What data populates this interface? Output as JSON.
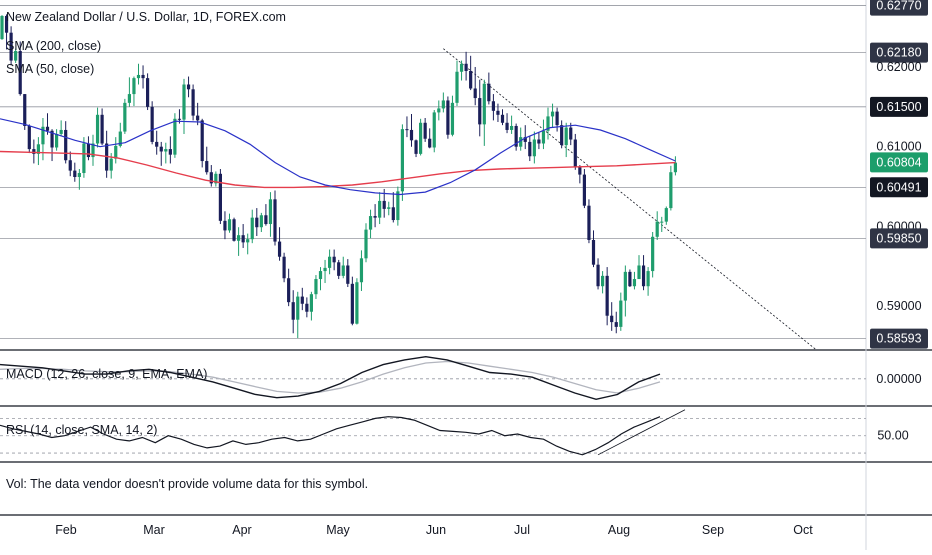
{
  "chart_data": {
    "type": "candlestick",
    "title": "New Zealand Dollar / U.S. Dollar, 1D, FOREX.com",
    "price_panel": {
      "ylim": [
        0.5845,
        0.6284
      ],
      "y_ticks": [
        0.59,
        0.6,
        0.61,
        0.62
      ],
      "indicators": [
        {
          "name": "SMA (200, close)",
          "color": "#e53d4c"
        },
        {
          "name": "SMA (50, close)",
          "color": "#2a32c8"
        }
      ],
      "horizontal_levels": [
        0.6277,
        0.6218,
        0.615,
        0.6049,
        0.5985,
        0.58593
      ],
      "axis_labels": [
        {
          "text": "0.62770",
          "value": 0.6277,
          "bg": "#2f3445",
          "fg": "#ffffff"
        },
        {
          "text": "0.62180",
          "value": 0.6218,
          "bg": "#2f3445",
          "fg": "#ffffff"
        },
        {
          "text": "0.62000",
          "value": 0.62,
          "bg": "",
          "fg": "#131722"
        },
        {
          "text": "0.61500",
          "value": 0.615,
          "bg": "#131722",
          "fg": "#ffffff"
        },
        {
          "text": "0.61000",
          "value": 0.61,
          "bg": "",
          "fg": "#131722"
        },
        {
          "text": "0.60804",
          "value": 0.60804,
          "bg": "#1d9e6b",
          "fg": "#ffffff"
        },
        {
          "text": "0.60491",
          "value": 0.60491,
          "bg": "#131722",
          "fg": "#ffffff"
        },
        {
          "text": "0.60000",
          "value": 0.6,
          "bg": "",
          "fg": "#131722"
        },
        {
          "text": "0.59850",
          "value": 0.5985,
          "bg": "#2f3445",
          "fg": "#ffffff"
        },
        {
          "text": "0.59000",
          "value": 0.59,
          "bg": "",
          "fg": "#131722"
        },
        {
          "text": "0.58593",
          "value": 0.58593,
          "bg": "#2f3445",
          "fg": "#ffffff"
        }
      ],
      "trendline": {
        "x": [
          97,
          179
        ],
        "y": [
          0.6223,
          0.5845
        ]
      },
      "ohlc": [
        [
          0.6235,
          0.6265,
          0.6234,
          0.6264
        ],
        [
          0.6264,
          0.6266,
          0.6222,
          0.6243
        ],
        [
          0.6243,
          0.6251,
          0.6202,
          0.6208
        ],
        [
          0.6208,
          0.6223,
          0.6205,
          0.622
        ],
        [
          0.622,
          0.6232,
          0.6164,
          0.6166
        ],
        [
          0.6166,
          0.6166,
          0.6121,
          0.6126
        ],
        [
          0.6126,
          0.6128,
          0.6092,
          0.6097
        ],
        [
          0.6097,
          0.6109,
          0.6079,
          0.6091
        ],
        [
          0.6091,
          0.6112,
          0.6077,
          0.6103
        ],
        [
          0.6103,
          0.6136,
          0.6083,
          0.6125
        ],
        [
          0.6125,
          0.6142,
          0.6115,
          0.612
        ],
        [
          0.612,
          0.6122,
          0.6082,
          0.6099
        ],
        [
          0.6099,
          0.6122,
          0.6095,
          0.6116
        ],
        [
          0.6116,
          0.6133,
          0.6113,
          0.6121
        ],
        [
          0.6121,
          0.6132,
          0.6079,
          0.6083
        ],
        [
          0.6083,
          0.6094,
          0.6063,
          0.607
        ],
        [
          0.607,
          0.608,
          0.6056,
          0.6062
        ],
        [
          0.6062,
          0.6072,
          0.6046,
          0.6067
        ],
        [
          0.6067,
          0.6112,
          0.6061,
          0.6104
        ],
        [
          0.6104,
          0.6113,
          0.6083,
          0.6087
        ],
        [
          0.6087,
          0.6115,
          0.6076,
          0.6104
        ],
        [
          0.6104,
          0.6149,
          0.6099,
          0.614
        ],
        [
          0.614,
          0.6148,
          0.6102,
          0.6104
        ],
        [
          0.6104,
          0.612,
          0.6061,
          0.607
        ],
        [
          0.607,
          0.6092,
          0.606,
          0.6085
        ],
        [
          0.6085,
          0.6112,
          0.6079,
          0.6101
        ],
        [
          0.6101,
          0.613,
          0.6099,
          0.6119
        ],
        [
          0.6119,
          0.616,
          0.6116,
          0.6155
        ],
        [
          0.6155,
          0.6187,
          0.615,
          0.6166
        ],
        [
          0.6166,
          0.6188,
          0.6151,
          0.6186
        ],
        [
          0.6186,
          0.6204,
          0.6178,
          0.619
        ],
        [
          0.619,
          0.6202,
          0.6173,
          0.6186
        ],
        [
          0.6186,
          0.6192,
          0.6146,
          0.615
        ],
        [
          0.615,
          0.6157,
          0.6103,
          0.6106
        ],
        [
          0.6106,
          0.612,
          0.609,
          0.61
        ],
        [
          0.61,
          0.6106,
          0.6076,
          0.6094
        ],
        [
          0.6094,
          0.6105,
          0.6079,
          0.6097
        ],
        [
          0.6097,
          0.6113,
          0.6079,
          0.609
        ],
        [
          0.609,
          0.6142,
          0.6086,
          0.6135
        ],
        [
          0.6135,
          0.6147,
          0.6129,
          0.6134
        ],
        [
          0.6134,
          0.6185,
          0.6116,
          0.6178
        ],
        [
          0.6178,
          0.6188,
          0.6162,
          0.6172
        ],
        [
          0.6172,
          0.6178,
          0.6133,
          0.6139
        ],
        [
          0.6139,
          0.6155,
          0.6127,
          0.6133
        ],
        [
          0.6133,
          0.6135,
          0.6074,
          0.6082
        ],
        [
          0.6082,
          0.61,
          0.6065,
          0.6068
        ],
        [
          0.6068,
          0.6077,
          0.605,
          0.6054
        ],
        [
          0.6054,
          0.6069,
          0.605,
          0.6066
        ],
        [
          0.6066,
          0.6072,
          0.6003,
          0.6007
        ],
        [
          0.6007,
          0.6019,
          0.5984,
          0.5995
        ],
        [
          0.5995,
          0.6016,
          0.5992,
          0.6009
        ],
        [
          0.6009,
          0.6011,
          0.5981,
          0.5982
        ],
        [
          0.5982,
          0.5999,
          0.5963,
          0.5989
        ],
        [
          0.5989,
          0.6003,
          0.5973,
          0.598
        ],
        [
          0.598,
          0.5991,
          0.5965,
          0.5984
        ],
        [
          0.5984,
          0.6021,
          0.5979,
          0.6011
        ],
        [
          0.6011,
          0.6023,
          0.5988,
          0.5999
        ],
        [
          0.5999,
          0.6017,
          0.5993,
          0.6014
        ],
        [
          0.6014,
          0.6028,
          0.6001,
          0.6003
        ],
        [
          0.6003,
          0.6043,
          0.5987,
          0.6034
        ],
        [
          0.6034,
          0.6045,
          0.5976,
          0.5981
        ],
        [
          0.5981,
          0.5999,
          0.5957,
          0.5962
        ],
        [
          0.5962,
          0.5967,
          0.593,
          0.5935
        ],
        [
          0.5935,
          0.5947,
          0.59,
          0.5905
        ],
        [
          0.5905,
          0.592,
          0.5866,
          0.5883
        ],
        [
          0.5883,
          0.5918,
          0.586,
          0.5912
        ],
        [
          0.5912,
          0.5923,
          0.5895,
          0.5903
        ],
        [
          0.5903,
          0.5911,
          0.5886,
          0.5893
        ],
        [
          0.5893,
          0.5918,
          0.5882,
          0.5915
        ],
        [
          0.5915,
          0.5939,
          0.5909,
          0.5934
        ],
        [
          0.5934,
          0.5949,
          0.592,
          0.5944
        ],
        [
          0.5944,
          0.5958,
          0.5929,
          0.5948
        ],
        [
          0.5948,
          0.5971,
          0.594,
          0.5962
        ],
        [
          0.5962,
          0.5971,
          0.5945,
          0.5955
        ],
        [
          0.5955,
          0.5958,
          0.5934,
          0.5938
        ],
        [
          0.5938,
          0.5962,
          0.5935,
          0.5951
        ],
        [
          0.5951,
          0.5959,
          0.5924,
          0.5928
        ],
        [
          0.5928,
          0.5937,
          0.5876,
          0.5878
        ],
        [
          0.5878,
          0.5935,
          0.5877,
          0.593
        ],
        [
          0.593,
          0.597,
          0.5919,
          0.596
        ],
        [
          0.596,
          0.6004,
          0.5955,
          0.5996
        ],
        [
          0.5996,
          0.6021,
          0.5985,
          0.6013
        ],
        [
          0.6013,
          0.6028,
          0.5999,
          0.6011
        ],
        [
          0.6011,
          0.6043,
          0.6003,
          0.6032
        ],
        [
          0.6032,
          0.6047,
          0.6011,
          0.6022
        ],
        [
          0.6022,
          0.6031,
          0.6014,
          0.6024
        ],
        [
          0.6024,
          0.6043,
          0.6005,
          0.6008
        ],
        [
          0.6008,
          0.605,
          0.6001,
          0.6044
        ],
        [
          0.6044,
          0.6128,
          0.6032,
          0.6122
        ],
        [
          0.6122,
          0.6138,
          0.6112,
          0.6121
        ],
        [
          0.6121,
          0.6141,
          0.61,
          0.6108
        ],
        [
          0.6108,
          0.6109,
          0.6087,
          0.6091
        ],
        [
          0.6091,
          0.6135,
          0.6089,
          0.613
        ],
        [
          0.613,
          0.6136,
          0.6106,
          0.611
        ],
        [
          0.611,
          0.6123,
          0.6098,
          0.6099
        ],
        [
          0.6099,
          0.6146,
          0.6093,
          0.6143
        ],
        [
          0.6143,
          0.6158,
          0.6133,
          0.6148
        ],
        [
          0.6148,
          0.6168,
          0.6143,
          0.6158
        ],
        [
          0.6158,
          0.6163,
          0.611,
          0.6115
        ],
        [
          0.6115,
          0.6164,
          0.6113,
          0.6155
        ],
        [
          0.6155,
          0.6208,
          0.6151,
          0.6194
        ],
        [
          0.6194,
          0.6208,
          0.6183,
          0.6204
        ],
        [
          0.6204,
          0.6219,
          0.6183,
          0.6195
        ],
        [
          0.6195,
          0.6214,
          0.6171,
          0.6173
        ],
        [
          0.6173,
          0.62,
          0.6152,
          0.6161
        ],
        [
          0.6161,
          0.6184,
          0.6113,
          0.6128
        ],
        [
          0.6128,
          0.6184,
          0.6101,
          0.6179
        ],
        [
          0.6179,
          0.6193,
          0.6153,
          0.6157
        ],
        [
          0.6157,
          0.6166,
          0.6133,
          0.6145
        ],
        [
          0.6145,
          0.6154,
          0.6131,
          0.614
        ],
        [
          0.614,
          0.6147,
          0.6127,
          0.613
        ],
        [
          0.613,
          0.6142,
          0.6117,
          0.6121
        ],
        [
          0.6121,
          0.6139,
          0.6116,
          0.6126
        ],
        [
          0.6126,
          0.6129,
          0.6095,
          0.61
        ],
        [
          0.61,
          0.6124,
          0.6095,
          0.6112
        ],
        [
          0.6112,
          0.6127,
          0.6097,
          0.6106
        ],
        [
          0.6106,
          0.6113,
          0.6082,
          0.6088
        ],
        [
          0.6088,
          0.6119,
          0.6079,
          0.6109
        ],
        [
          0.6109,
          0.6118,
          0.6097,
          0.6104
        ],
        [
          0.6104,
          0.6134,
          0.6097,
          0.612
        ],
        [
          0.612,
          0.6149,
          0.6109,
          0.6138
        ],
        [
          0.6138,
          0.6154,
          0.6124,
          0.6144
        ],
        [
          0.6144,
          0.6149,
          0.6119,
          0.6127
        ],
        [
          0.6127,
          0.6133,
          0.6098,
          0.6102
        ],
        [
          0.6102,
          0.613,
          0.6087,
          0.6124
        ],
        [
          0.6124,
          0.613,
          0.6102,
          0.6109
        ],
        [
          0.6109,
          0.6116,
          0.6071,
          0.6074
        ],
        [
          0.6074,
          0.6077,
          0.6054,
          0.6065
        ],
        [
          0.6065,
          0.6072,
          0.6023,
          0.6026
        ],
        [
          0.6026,
          0.6034,
          0.5979,
          0.5983
        ],
        [
          0.5983,
          0.5995,
          0.5949,
          0.5952
        ],
        [
          0.5952,
          0.596,
          0.5921,
          0.5925
        ],
        [
          0.5925,
          0.5944,
          0.5916,
          0.5938
        ],
        [
          0.5938,
          0.5949,
          0.5876,
          0.5888
        ],
        [
          0.5888,
          0.5905,
          0.5869,
          0.588
        ],
        [
          0.588,
          0.5893,
          0.5866,
          0.5874
        ],
        [
          0.5874,
          0.5917,
          0.5869,
          0.5907
        ],
        [
          0.5907,
          0.5951,
          0.5887,
          0.5943
        ],
        [
          0.5943,
          0.5946,
          0.5924,
          0.5925
        ],
        [
          0.5925,
          0.5943,
          0.5921,
          0.5934
        ],
        [
          0.5934,
          0.5964,
          0.5934,
          0.5951
        ],
        [
          0.5951,
          0.5964,
          0.592,
          0.5925
        ],
        [
          0.5925,
          0.5949,
          0.5913,
          0.5944
        ],
        [
          0.5944,
          0.5993,
          0.5936,
          0.5987
        ],
        [
          0.5987,
          0.6019,
          0.5983,
          0.6006
        ],
        [
          0.6006,
          0.6012,
          0.5993,
          0.6006
        ],
        [
          0.6006,
          0.6025,
          0.6002,
          0.6023
        ],
        [
          0.6023,
          0.6076,
          0.602,
          0.6068
        ],
        [
          0.6068,
          0.6088,
          0.6064,
          0.608
        ]
      ],
      "sma50": [
        0.6135,
        0.6128,
        0.6118,
        0.6108,
        0.61,
        0.6105,
        0.612,
        0.6132,
        0.6131,
        0.612,
        0.6103,
        0.608,
        0.6062,
        0.6052,
        0.6046,
        0.6042,
        0.604,
        0.6043,
        0.6055,
        0.6071,
        0.6092,
        0.6111,
        0.6124,
        0.6127,
        0.6121,
        0.611,
        0.6096,
        0.6082
      ],
      "sma200": [
        0.6094,
        0.6093,
        0.6092,
        0.6091,
        0.6086,
        0.6077,
        0.6067,
        0.6058,
        0.6052,
        0.6049,
        0.6049,
        0.605,
        0.6052,
        0.6056,
        0.6061,
        0.6066,
        0.607,
        0.6072,
        0.6073,
        0.6074,
        0.6075,
        0.6076,
        0.6078,
        0.608
      ]
    },
    "macd_panel": {
      "label": "MACD (12, 26, close, 9, EMA, EMA)",
      "axis_label": "0.00000",
      "ylim": [
        -0.0032,
        0.0034
      ],
      "macd": [
        0.0018,
        0.0016,
        0.0014,
        0.001,
        0.0006,
        0.0006,
        0.001,
        0.0012,
        0.0008,
        0.0002,
        -0.0004,
        -0.0012,
        -0.002,
        -0.0024,
        -0.0022,
        -0.0016,
        -0.0006,
        0.0008,
        0.0018,
        0.0024,
        0.0028,
        0.0024,
        0.0016,
        0.0008,
        0.0006,
        0.0002,
        -0.0008,
        -0.0018,
        -0.0026,
        -0.002,
        -0.0004,
        0.0006
      ],
      "signal": [
        0.0012,
        0.0013,
        0.0013,
        0.0012,
        0.001,
        0.0009,
        0.0009,
        0.001,
        0.0009,
        0.0006,
        0.0002,
        -0.0004,
        -0.001,
        -0.0016,
        -0.0018,
        -0.0017,
        -0.0012,
        -0.0004,
        0.0006,
        0.0014,
        0.002,
        0.0022,
        0.002,
        0.0016,
        0.0012,
        0.0008,
        0.0002,
        -0.0006,
        -0.0014,
        -0.0018,
        -0.0012,
        -0.0004
      ]
    },
    "rsi_panel": {
      "label": "RSI (14, close, SMA, 14, 2)",
      "axis_label": "50.00",
      "ylim": [
        22,
        82
      ],
      "bands": [
        30,
        50,
        70
      ],
      "rsi": [
        62,
        58,
        55,
        52,
        48,
        50,
        55,
        60,
        52,
        46,
        44,
        48,
        42,
        50,
        46,
        40,
        36,
        38,
        44,
        40,
        42,
        46,
        48,
        44,
        46,
        52,
        58,
        62,
        66,
        70,
        72,
        71,
        68,
        62,
        56,
        55,
        54,
        52,
        56,
        50,
        52,
        48,
        46,
        38,
        32,
        28,
        34,
        42,
        52,
        60,
        66,
        72
      ]
    },
    "x_axis": {
      "labels": [
        "Feb",
        "Mar",
        "Apr",
        "May",
        "Jun",
        "Jul",
        "Aug",
        "Sep",
        "Oct"
      ]
    }
  },
  "volume_note": "Vol: The data vendor doesn't provide volume data for this symbol.",
  "colors": {
    "up": "#1f9d6d",
    "down": "#1b1f59",
    "sma200": "#e53d4c",
    "sma50": "#2a32c8"
  }
}
